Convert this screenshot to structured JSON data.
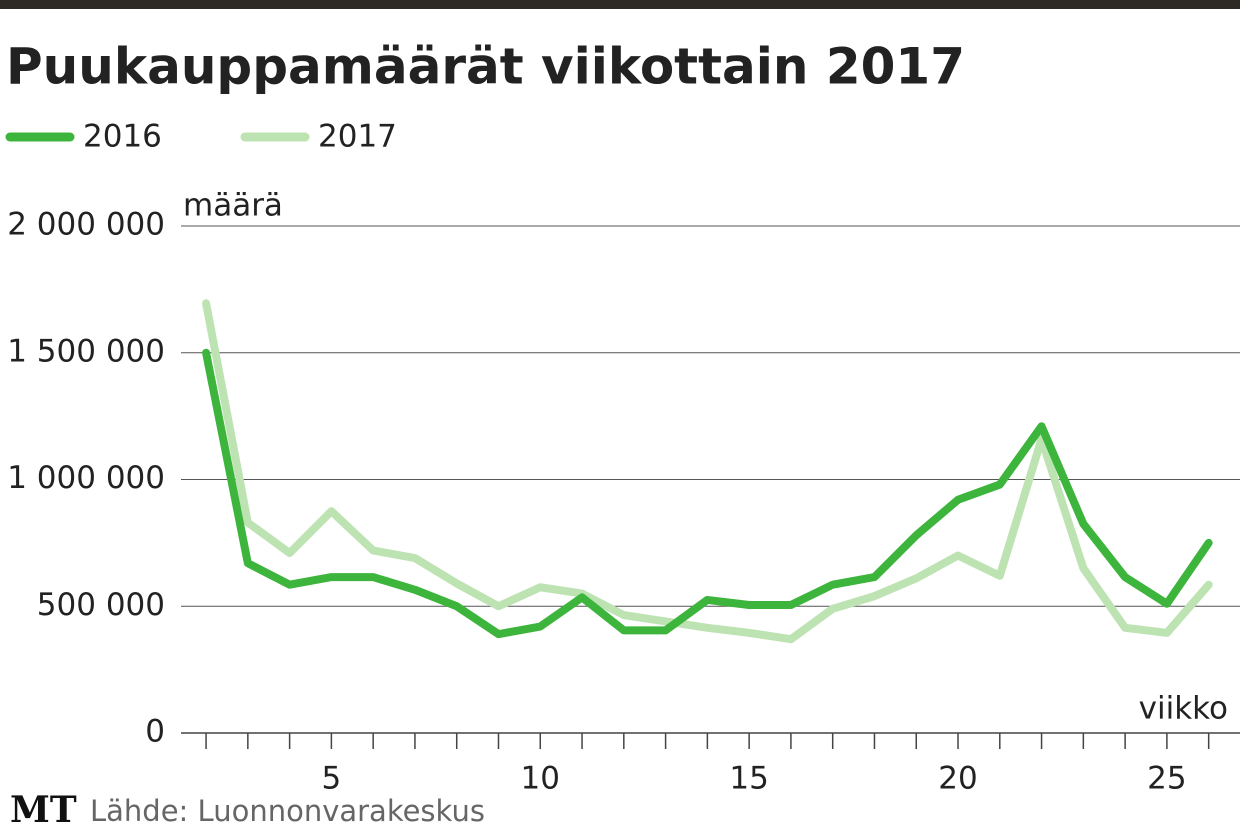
{
  "chart_data": {
    "type": "line",
    "title": "Puukauppamäärät viikottain 2017",
    "y_label": "määrä",
    "x_label": "viikko",
    "source": "Lähde: Luonnonvarakeskus",
    "logo": "MT",
    "x": [
      2,
      3,
      4,
      5,
      6,
      7,
      8,
      9,
      10,
      11,
      12,
      13,
      14,
      15,
      16,
      17,
      18,
      19,
      20,
      21,
      22,
      23,
      24,
      25,
      26
    ],
    "series": [
      {
        "name": "2016",
        "color": "#3db53d",
        "values": [
          1500000,
          670000,
          585000,
          615000,
          615000,
          565000,
          500000,
          390000,
          420000,
          535000,
          405000,
          405000,
          525000,
          505000,
          505000,
          585000,
          615000,
          780000,
          920000,
          980000,
          1210000,
          825000,
          615000,
          510000,
          750000
        ]
      },
      {
        "name": "2017",
        "color": "#bde3b3",
        "values": [
          1695000,
          830000,
          710000,
          875000,
          720000,
          690000,
          590000,
          500000,
          575000,
          550000,
          465000,
          440000,
          415000,
          395000,
          370000,
          490000,
          540000,
          610000,
          700000,
          620000,
          1160000,
          650000,
          415000,
          395000,
          585000
        ]
      }
    ],
    "xlim": [
      1.4,
      26.75
    ],
    "xticks": [
      5,
      10,
      15,
      20,
      25
    ],
    "xminor_ticks": [
      2,
      3,
      4,
      5,
      6,
      7,
      8,
      9,
      10,
      11,
      12,
      13,
      14,
      15,
      16,
      17,
      18,
      19,
      20,
      21,
      22,
      23,
      24,
      25,
      26
    ],
    "ylim": [
      0,
      2000000
    ],
    "yticks": [
      0,
      {
        "value": 500000,
        "label": "500 000"
      },
      {
        "value": 1000000,
        "label": "1 000 000"
      },
      {
        "value": 1500000,
        "label": "1 500 000"
      },
      {
        "value": 2000000,
        "label": "2 000 000"
      }
    ],
    "grid": true
  }
}
